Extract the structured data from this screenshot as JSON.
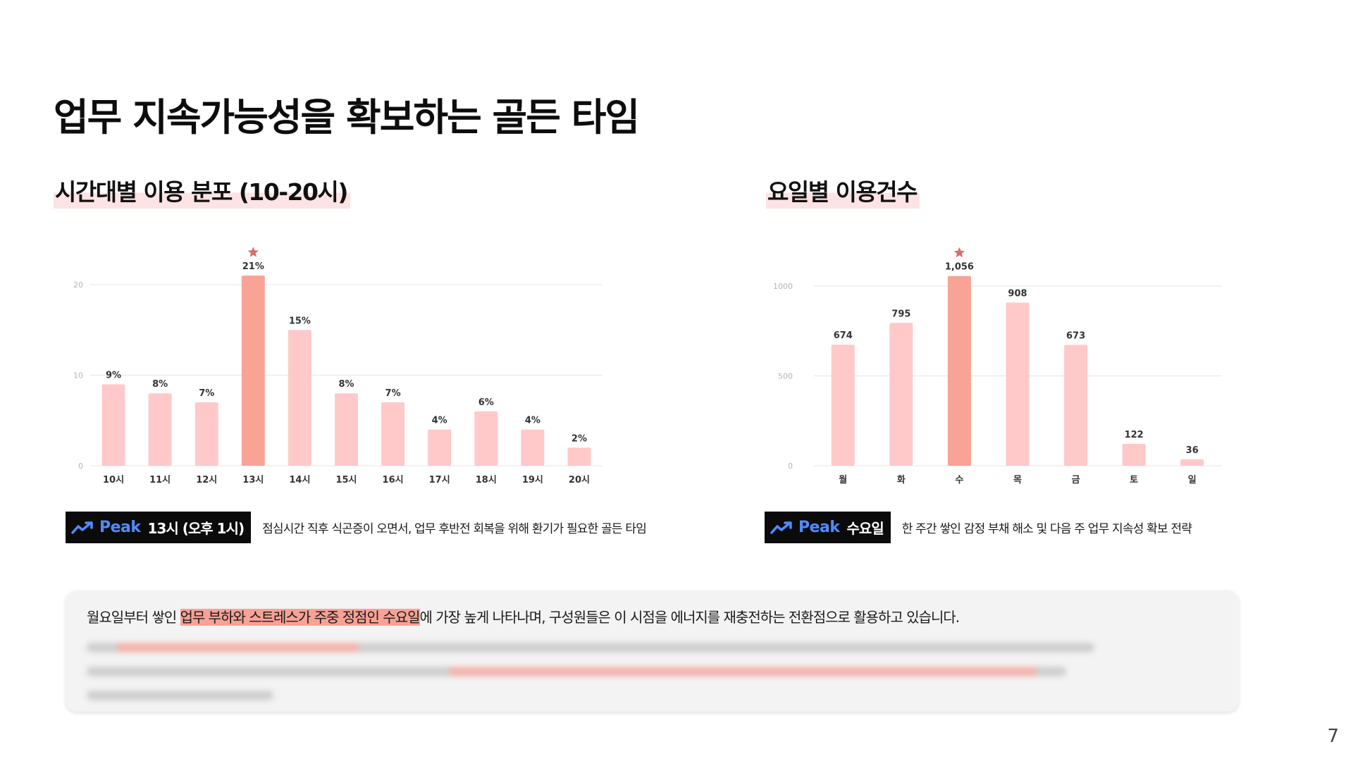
{
  "title": "업무 지속가능성을 확보하는 골든 타임",
  "colors": {
    "bar": "#ffc9c9",
    "highlight_bar": "#f8a395",
    "star": "#d86f6a",
    "highlight_text": "#f8a195",
    "peak_word": "#4f8cff"
  },
  "chart_data": [
    {
      "type": "bar",
      "title": "시간대별 이용 분포 (10-20시)",
      "categories": [
        "10시",
        "11시",
        "12시",
        "13시",
        "14시",
        "15시",
        "16시",
        "17시",
        "18시",
        "19시",
        "20시"
      ],
      "values": [
        9,
        8,
        7,
        21,
        15,
        8,
        7,
        4,
        6,
        4,
        2
      ],
      "value_labels": [
        "9%",
        "8%",
        "7%",
        "21%",
        "15%",
        "8%",
        "7%",
        "4%",
        "6%",
        "4%",
        "2%"
      ],
      "highlight_index": 3,
      "yticks": [
        0,
        10,
        20
      ],
      "ylim": [
        0,
        20
      ],
      "grid": true
    },
    {
      "type": "bar",
      "title": "요일별 이용건수",
      "categories": [
        "월",
        "화",
        "수",
        "목",
        "금",
        "토",
        "일"
      ],
      "values": [
        674,
        795,
        1056,
        908,
        673,
        122,
        36
      ],
      "value_labels": [
        "674",
        "795",
        "1,056",
        "908",
        "673",
        "122",
        "36"
      ],
      "highlight_index": 2,
      "yticks": [
        0,
        500,
        1000
      ],
      "ylim": [
        0,
        1000
      ],
      "grid": true
    }
  ],
  "peaks": [
    {
      "icon": "trending-up-icon",
      "label": "Peak",
      "value": "13시 (오후 1시)",
      "desc": "점심시간 직후 식곤증이 오면서, 업무 후반전 회복을 위해 환기가 필요한 골든 타임"
    },
    {
      "icon": "trending-up-icon",
      "label": "Peak",
      "value": "수요일",
      "desc": "한 주간 쌓인 감정 부채 해소 및 다음 주 업무 지속성 확보 전략"
    }
  ],
  "summary": {
    "line1_before": "월요일부터 쌓인 ",
    "line1_highlight": "업무 부하와 스트레스가 주중 정점인 수요일",
    "line1_after": "에 가장 높게 나타나며, 구성원들은 이 시점을 에너지를 재충전하는 전환점으로 활용하고 있습니다."
  },
  "page_number": "7"
}
